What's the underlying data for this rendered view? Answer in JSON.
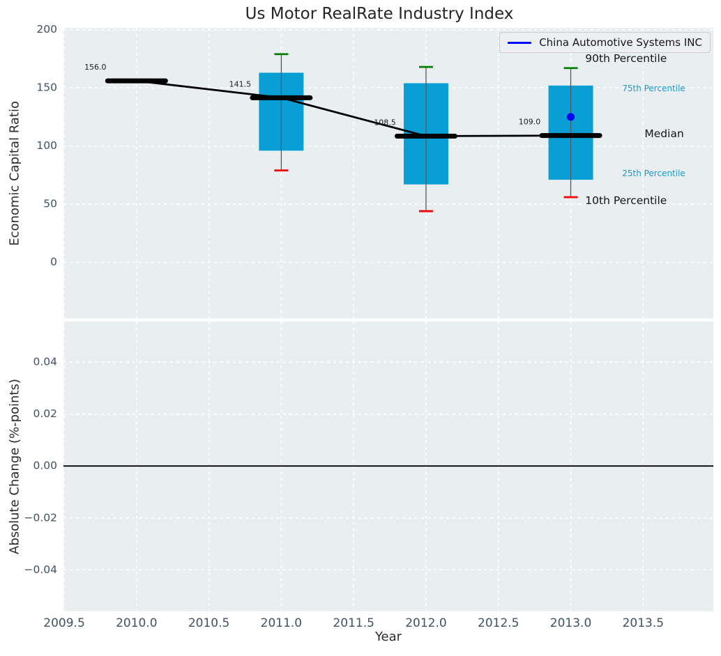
{
  "chart_data": {
    "type": "boxplot",
    "title": "Us Motor RealRate Industry Index",
    "xlabel": "Year",
    "xticks": [
      "2009.5",
      "2010.0",
      "2010.5",
      "2011.0",
      "2011.5",
      "2012.0",
      "2012.5",
      "2013.0",
      "2013.5"
    ],
    "xtick_values": [
      2009.5,
      2010.0,
      2010.5,
      2011.0,
      2011.5,
      2012.0,
      2012.5,
      2013.0,
      2013.5
    ],
    "xlim": [
      2009.495,
      2013.985
    ],
    "grid": "white dashed, on",
    "top_panel": {
      "ylabel": "Economic Capital Ratio",
      "yticks": [
        "200",
        "150",
        "100",
        "50",
        "0"
      ],
      "ytick_values": [
        200,
        150,
        100,
        50,
        0
      ],
      "ylim": [
        -48.4,
        201.6
      ],
      "boxes": [
        {
          "year": 2010,
          "median": 156.0,
          "median_label": "156.0",
          "q1": null,
          "q3": null,
          "p10": null,
          "p90": null
        },
        {
          "year": 2011,
          "median": 141.5,
          "median_label": "141.5",
          "q1": 96,
          "q3": 163,
          "p10": 79,
          "p90": 179
        },
        {
          "year": 2012,
          "median": 108.5,
          "median_label": "108.5",
          "q1": 67,
          "q3": 154,
          "p10": 44,
          "p90": 168
        },
        {
          "year": 2013,
          "median": 109.0,
          "median_label": "109.0",
          "q1": 71,
          "q3": 152,
          "p10": 56,
          "p90": 167
        }
      ],
      "median_series": {
        "years": [
          2010,
          2011,
          2012,
          2013
        ],
        "values": [
          156.0,
          141.5,
          108.5,
          109.0
        ]
      },
      "company_series": {
        "name": "China Automotive Systems INC",
        "points": [
          {
            "year": 2013,
            "value": 125
          }
        ]
      },
      "annotations": [
        {
          "text": "90th Percentile",
          "size": "large",
          "year": 2013.1,
          "value": 175
        },
        {
          "text": "75th Percentile",
          "size": "small",
          "year": 2013.355,
          "value": 149.5
        },
        {
          "text": "Median",
          "size": "large",
          "year": 2013.51,
          "value": 110.5
        },
        {
          "text": "25th Percentile",
          "size": "small",
          "year": 2013.355,
          "value": 76.5
        },
        {
          "text": "10th Percentile",
          "size": "large",
          "year": 2013.1,
          "value": 53
        }
      ]
    },
    "bottom_panel": {
      "ylabel": "Absolute Change (%-points)",
      "yticks": [
        "0.04",
        "0.02",
        "0.00",
        "−0.02",
        "−0.04"
      ],
      "ytick_values": [
        0.04,
        0.02,
        0.0,
        -0.02,
        -0.04
      ],
      "ylim": [
        -0.056,
        0.0557
      ],
      "zero_line_value": 0.0
    },
    "legend": {
      "label": "China Automotive Systems INC",
      "position": "upper right"
    }
  },
  "colors": {
    "panel_background": "#e9eef0",
    "grid": "#ffffff",
    "box_fill": "#0a9fd4",
    "whisker": "#595959",
    "cap_top": "#008000",
    "cap_bottom": "#f40000",
    "median": "#000000",
    "company": "#0000ff",
    "tick_label": "#3d5269",
    "data_label": "#1c1c1c",
    "annotation_small": "#189ad3",
    "zero_line": "#000000"
  }
}
